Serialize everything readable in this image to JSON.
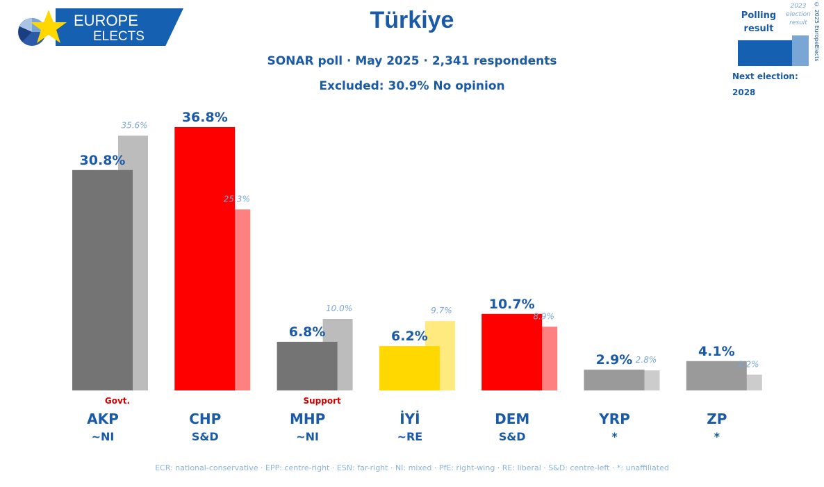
{
  "logo": {
    "line1": "EUROPE",
    "line2": "ELECTS"
  },
  "header": {
    "title": "Türkiye",
    "subtitle": "SONAR poll · May 2025 · 2,341 respondents",
    "excluded": "Excluded: 30.9% No opinion"
  },
  "legend": {
    "polling_label": "Polling result",
    "election_label": "2023 election result",
    "copyright": "© 2025 EuropeElects",
    "next_election_label": "Next election:",
    "next_election_value": "2028",
    "colors": {
      "poll": "#1560b0",
      "election": "#7aa6d6"
    }
  },
  "chart_data": {
    "type": "bar",
    "categories": [
      "AKP",
      "CHP",
      "MHP",
      "İYİ",
      "DEM",
      "YRP",
      "ZP"
    ],
    "groups": [
      "~NI",
      "S&D",
      "~NI",
      "~RE",
      "S&D",
      "*",
      "*"
    ],
    "roles": [
      "Govt.",
      "",
      "Support",
      "",
      "",
      "",
      ""
    ],
    "series": [
      {
        "name": "Polling result",
        "values": [
          30.8,
          36.8,
          6.8,
          6.2,
          10.7,
          2.9,
          4.1
        ]
      },
      {
        "name": "2023 election result",
        "values": [
          35.6,
          25.3,
          10.0,
          9.7,
          8.9,
          2.8,
          2.2
        ]
      }
    ],
    "value_labels_poll": [
      "30.8%",
      "36.8%",
      "6.8%",
      "6.2%",
      "10.7%",
      "2.9%",
      "4.1%"
    ],
    "value_labels_election": [
      "35.6%",
      "25.3%",
      "10.0%",
      "9.7%",
      "8.9%",
      "2.8%",
      "2.2%"
    ],
    "colors_poll": [
      "#747474",
      "#ff0000",
      "#747474",
      "#ffd800",
      "#ff0000",
      "#9a9a9a",
      "#9a9a9a"
    ],
    "colors_election": [
      "#bcbcbc",
      "#ff8080",
      "#bcbcbc",
      "#ffea80",
      "#ff8080",
      "#cccccc",
      "#cccccc"
    ],
    "ylim": [
      0,
      40
    ],
    "grid": false
  },
  "footer": "ECR: national-conservative · EPP: centre-right · ESN: far-right · NI: mixed · PfE: right-wing · RE: liberal · S&D: centre-left · *: unaffiliated"
}
